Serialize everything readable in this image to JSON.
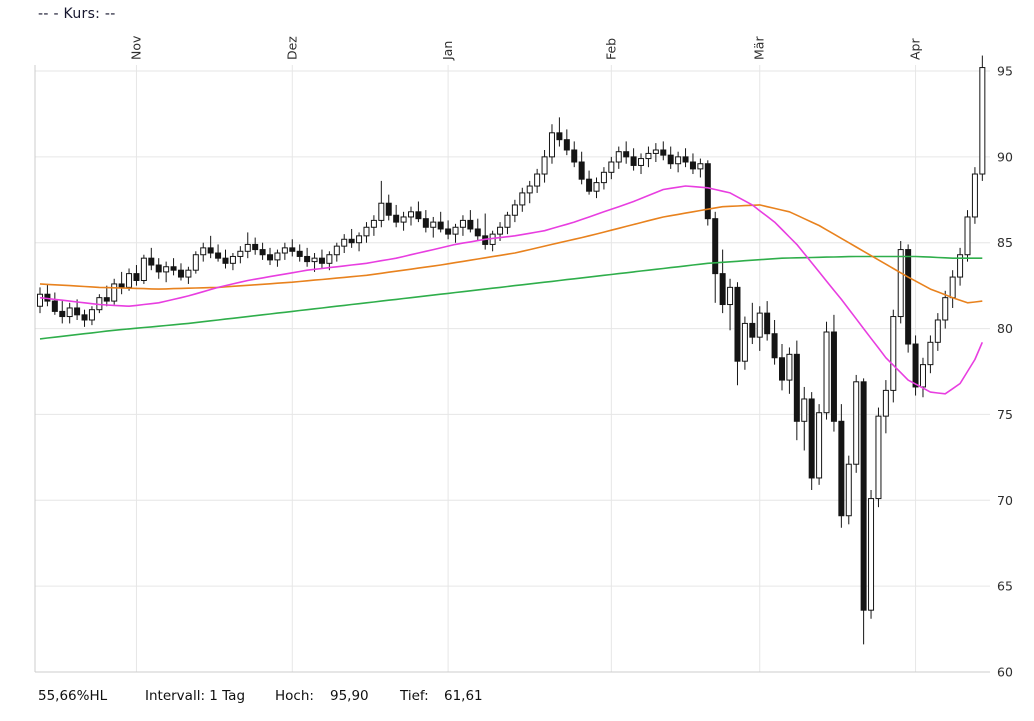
{
  "header": {
    "quote_label": "--  - Kurs: --"
  },
  "footer": {
    "range_pct": "55,66%HL",
    "interval_label": "Intervall: 1 Tag",
    "high_label": "Hoch:",
    "high_value": "95,90",
    "low_label": "Tief:",
    "low_value": "61,61"
  },
  "chart_data": {
    "type": "candlestick",
    "title": "",
    "interval": "1 Tag",
    "high": 95.9,
    "low": 61.61,
    "grid": true,
    "colors": {
      "up_candle": "#ffffff",
      "down_candle": "#151515",
      "candle_outline": "#151515",
      "grid": "#e6e6e6",
      "axis": "#cccccc",
      "text": "#2e2e2e",
      "ma_slow": "#2fae4b",
      "ma_medium": "#e8821e",
      "ma_fast": "#e83ee0"
    },
    "y_axis": {
      "ticks": [
        95,
        90,
        85,
        80,
        75,
        70,
        65,
        60
      ],
      "ylim": [
        60,
        96
      ]
    },
    "x_axis": {
      "months": [
        {
          "label": "Nov",
          "index": 13
        },
        {
          "label": "Dez",
          "index": 34
        },
        {
          "label": "Jan",
          "index": 55
        },
        {
          "label": "Feb",
          "index": 77
        },
        {
          "label": "Mär",
          "index": 97
        },
        {
          "label": "Apr",
          "index": 118
        }
      ]
    },
    "candles": [
      [
        81.3,
        82.4,
        80.9,
        82.0
      ],
      [
        82.0,
        82.6,
        81.3,
        81.6
      ],
      [
        81.6,
        82.1,
        80.8,
        81.0
      ],
      [
        81.0,
        81.6,
        80.3,
        80.7
      ],
      [
        80.7,
        81.5,
        80.3,
        81.2
      ],
      [
        81.2,
        81.7,
        80.5,
        80.8
      ],
      [
        80.8,
        81.1,
        80.1,
        80.5
      ],
      [
        80.5,
        81.3,
        80.2,
        81.1
      ],
      [
        81.1,
        82.0,
        80.9,
        81.8
      ],
      [
        81.8,
        82.5,
        81.3,
        81.6
      ],
      [
        81.6,
        82.9,
        81.4,
        82.6
      ],
      [
        82.6,
        83.3,
        82.0,
        82.4
      ],
      [
        82.4,
        83.5,
        82.2,
        83.2
      ],
      [
        83.2,
        83.7,
        82.5,
        82.8
      ],
      [
        82.8,
        84.3,
        82.6,
        84.1
      ],
      [
        84.1,
        84.7,
        83.4,
        83.7
      ],
      [
        83.7,
        84.1,
        82.9,
        83.3
      ],
      [
        83.3,
        83.9,
        82.7,
        83.6
      ],
      [
        83.6,
        84.1,
        83.1,
        83.4
      ],
      [
        83.4,
        83.8,
        82.8,
        83.0
      ],
      [
        83.0,
        83.6,
        82.6,
        83.4
      ],
      [
        83.4,
        84.5,
        83.2,
        84.3
      ],
      [
        84.3,
        85.0,
        83.9,
        84.7
      ],
      [
        84.7,
        85.4,
        84.1,
        84.4
      ],
      [
        84.4,
        84.9,
        83.9,
        84.1
      ],
      [
        84.1,
        84.6,
        83.5,
        83.8
      ],
      [
        83.8,
        84.4,
        83.4,
        84.2
      ],
      [
        84.2,
        84.8,
        83.8,
        84.5
      ],
      [
        84.5,
        85.6,
        84.1,
        84.9
      ],
      [
        84.9,
        85.3,
        84.3,
        84.6
      ],
      [
        84.6,
        85.0,
        84.0,
        84.3
      ],
      [
        84.3,
        84.7,
        83.7,
        84.0
      ],
      [
        84.0,
        84.6,
        83.6,
        84.4
      ],
      [
        84.4,
        85.0,
        84.0,
        84.7
      ],
      [
        84.7,
        85.2,
        84.2,
        84.5
      ],
      [
        84.5,
        84.9,
        83.9,
        84.2
      ],
      [
        84.2,
        84.7,
        83.6,
        83.9
      ],
      [
        83.9,
        84.4,
        83.3,
        84.1
      ],
      [
        84.1,
        84.6,
        83.5,
        83.8
      ],
      [
        83.8,
        84.5,
        83.4,
        84.3
      ],
      [
        84.3,
        85.0,
        83.9,
        84.8
      ],
      [
        84.8,
        85.5,
        84.4,
        85.2
      ],
      [
        85.2,
        85.8,
        84.7,
        85.0
      ],
      [
        85.0,
        85.6,
        84.5,
        85.4
      ],
      [
        85.4,
        86.2,
        85.0,
        85.9
      ],
      [
        85.9,
        86.6,
        85.4,
        86.3
      ],
      [
        86.3,
        88.6,
        85.9,
        87.3
      ],
      [
        87.3,
        87.8,
        86.3,
        86.6
      ],
      [
        86.6,
        87.2,
        85.9,
        86.2
      ],
      [
        86.2,
        86.8,
        85.7,
        86.5
      ],
      [
        86.5,
        87.1,
        86.0,
        86.8
      ],
      [
        86.8,
        87.4,
        86.2,
        86.4
      ],
      [
        86.4,
        86.9,
        85.6,
        85.9
      ],
      [
        85.9,
        86.5,
        85.3,
        86.2
      ],
      [
        86.2,
        86.8,
        85.6,
        85.8
      ],
      [
        85.8,
        86.3,
        85.2,
        85.5
      ],
      [
        85.5,
        86.1,
        85.0,
        85.9
      ],
      [
        85.9,
        86.6,
        85.4,
        86.3
      ],
      [
        86.3,
        86.9,
        85.6,
        85.8
      ],
      [
        85.8,
        86.4,
        85.1,
        85.4
      ],
      [
        85.4,
        86.7,
        84.6,
        84.9
      ],
      [
        84.9,
        85.7,
        84.5,
        85.5
      ],
      [
        85.5,
        86.2,
        85.1,
        85.9
      ],
      [
        85.9,
        86.8,
        85.5,
        86.6
      ],
      [
        86.6,
        87.5,
        86.2,
        87.2
      ],
      [
        87.2,
        88.2,
        86.8,
        87.9
      ],
      [
        87.9,
        88.6,
        87.3,
        88.3
      ],
      [
        88.3,
        89.3,
        87.9,
        89.0
      ],
      [
        89.0,
        90.4,
        88.5,
        90.0
      ],
      [
        90.0,
        91.9,
        89.6,
        91.4
      ],
      [
        91.4,
        92.3,
        90.6,
        91.0
      ],
      [
        91.0,
        91.6,
        90.1,
        90.4
      ],
      [
        90.4,
        90.9,
        89.4,
        89.7
      ],
      [
        89.7,
        90.3,
        88.4,
        88.7
      ],
      [
        88.7,
        89.2,
        87.8,
        88.0
      ],
      [
        88.0,
        88.8,
        87.6,
        88.5
      ],
      [
        88.5,
        89.4,
        88.1,
        89.1
      ],
      [
        89.1,
        90.0,
        88.7,
        89.7
      ],
      [
        89.7,
        90.6,
        89.3,
        90.3
      ],
      [
        90.3,
        90.9,
        89.6,
        90.0
      ],
      [
        90.0,
        90.5,
        89.2,
        89.5
      ],
      [
        89.5,
        90.2,
        89.0,
        89.9
      ],
      [
        89.9,
        90.6,
        89.4,
        90.2
      ],
      [
        90.2,
        90.8,
        89.7,
        90.4
      ],
      [
        90.4,
        90.9,
        89.8,
        90.1
      ],
      [
        90.1,
        90.6,
        89.3,
        89.6
      ],
      [
        89.6,
        90.3,
        89.1,
        90.0
      ],
      [
        90.0,
        90.5,
        89.4,
        89.7
      ],
      [
        89.7,
        90.2,
        89.0,
        89.3
      ],
      [
        89.3,
        89.9,
        88.8,
        89.6
      ],
      [
        89.6,
        89.8,
        86.0,
        86.4
      ],
      [
        86.4,
        86.8,
        81.5,
        83.2
      ],
      [
        83.2,
        84.6,
        80.9,
        81.4
      ],
      [
        81.4,
        82.9,
        79.9,
        82.4
      ],
      [
        82.4,
        82.7,
        76.7,
        78.1
      ],
      [
        78.1,
        80.7,
        77.6,
        80.3
      ],
      [
        80.3,
        81.5,
        79.1,
        79.5
      ],
      [
        79.5,
        81.3,
        78.7,
        80.9
      ],
      [
        80.9,
        81.6,
        79.3,
        79.7
      ],
      [
        79.7,
        80.5,
        77.9,
        78.3
      ],
      [
        78.3,
        79.1,
        76.4,
        77.0
      ],
      [
        77.0,
        78.9,
        76.2,
        78.5
      ],
      [
        78.5,
        79.3,
        73.5,
        74.6
      ],
      [
        74.6,
        76.6,
        72.9,
        75.9
      ],
      [
        75.9,
        76.3,
        70.6,
        71.3
      ],
      [
        71.3,
        75.6,
        70.9,
        75.1
      ],
      [
        75.1,
        80.4,
        74.7,
        79.8
      ],
      [
        79.8,
        80.8,
        74.0,
        74.6
      ],
      [
        74.6,
        75.6,
        68.4,
        69.1
      ],
      [
        69.1,
        72.6,
        68.6,
        72.1
      ],
      [
        72.1,
        77.3,
        71.6,
        76.9
      ],
      [
        76.9,
        77.1,
        61.61,
        63.6
      ],
      [
        63.6,
        70.6,
        63.1,
        70.1
      ],
      [
        70.1,
        75.4,
        69.6,
        74.9
      ],
      [
        74.9,
        77.0,
        73.9,
        76.4
      ],
      [
        76.4,
        81.1,
        75.7,
        80.7
      ],
      [
        80.7,
        85.1,
        80.3,
        84.6
      ],
      [
        84.6,
        84.9,
        78.6,
        79.1
      ],
      [
        79.1,
        79.6,
        76.1,
        76.6
      ],
      [
        76.6,
        78.3,
        76.0,
        77.9
      ],
      [
        77.9,
        79.6,
        77.4,
        79.2
      ],
      [
        79.2,
        80.9,
        78.7,
        80.5
      ],
      [
        80.5,
        82.2,
        80.0,
        81.8
      ],
      [
        81.8,
        83.4,
        81.2,
        83.0
      ],
      [
        83.0,
        84.7,
        82.5,
        84.3
      ],
      [
        84.3,
        86.9,
        83.9,
        86.5
      ],
      [
        86.5,
        89.4,
        86.1,
        89.0
      ],
      [
        89.0,
        95.9,
        88.6,
        95.2
      ]
    ],
    "moving_averages": [
      {
        "name": "ma-slow",
        "color": "#2fae4b",
        "points": [
          [
            0,
            79.4
          ],
          [
            10,
            79.9
          ],
          [
            20,
            80.3
          ],
          [
            30,
            80.8
          ],
          [
            40,
            81.3
          ],
          [
            50,
            81.8
          ],
          [
            60,
            82.3
          ],
          [
            70,
            82.8
          ],
          [
            80,
            83.3
          ],
          [
            90,
            83.8
          ],
          [
            100,
            84.1
          ],
          [
            110,
            84.2
          ],
          [
            118,
            84.2
          ],
          [
            123,
            84.1
          ],
          [
            127,
            84.1
          ]
        ]
      },
      {
        "name": "ma-medium",
        "color": "#e8821e",
        "points": [
          [
            0,
            82.6
          ],
          [
            8,
            82.4
          ],
          [
            16,
            82.3
          ],
          [
            24,
            82.4
          ],
          [
            34,
            82.7
          ],
          [
            44,
            83.1
          ],
          [
            54,
            83.7
          ],
          [
            64,
            84.4
          ],
          [
            74,
            85.4
          ],
          [
            84,
            86.5
          ],
          [
            92,
            87.1
          ],
          [
            97,
            87.2
          ],
          [
            101,
            86.8
          ],
          [
            105,
            86.0
          ],
          [
            109,
            85.0
          ],
          [
            113,
            84.0
          ],
          [
            117,
            83.0
          ],
          [
            120,
            82.3
          ],
          [
            123,
            81.8
          ],
          [
            125,
            81.5
          ],
          [
            127,
            81.6
          ]
        ]
      },
      {
        "name": "ma-fast",
        "color": "#e83ee0",
        "points": [
          [
            0,
            81.8
          ],
          [
            4,
            81.6
          ],
          [
            8,
            81.4
          ],
          [
            12,
            81.3
          ],
          [
            16,
            81.5
          ],
          [
            20,
            81.9
          ],
          [
            24,
            82.4
          ],
          [
            28,
            82.8
          ],
          [
            32,
            83.1
          ],
          [
            36,
            83.4
          ],
          [
            40,
            83.6
          ],
          [
            44,
            83.8
          ],
          [
            48,
            84.1
          ],
          [
            52,
            84.5
          ],
          [
            56,
            84.9
          ],
          [
            60,
            85.2
          ],
          [
            64,
            85.4
          ],
          [
            68,
            85.7
          ],
          [
            72,
            86.2
          ],
          [
            76,
            86.8
          ],
          [
            80,
            87.4
          ],
          [
            84,
            88.1
          ],
          [
            87,
            88.3
          ],
          [
            90,
            88.2
          ],
          [
            93,
            87.9
          ],
          [
            96,
            87.2
          ],
          [
            99,
            86.2
          ],
          [
            102,
            84.9
          ],
          [
            105,
            83.3
          ],
          [
            108,
            81.7
          ],
          [
            111,
            80.0
          ],
          [
            114,
            78.3
          ],
          [
            117,
            77.0
          ],
          [
            120,
            76.3
          ],
          [
            122,
            76.2
          ],
          [
            124,
            76.8
          ],
          [
            126,
            78.2
          ],
          [
            127,
            79.2
          ]
        ]
      }
    ]
  }
}
